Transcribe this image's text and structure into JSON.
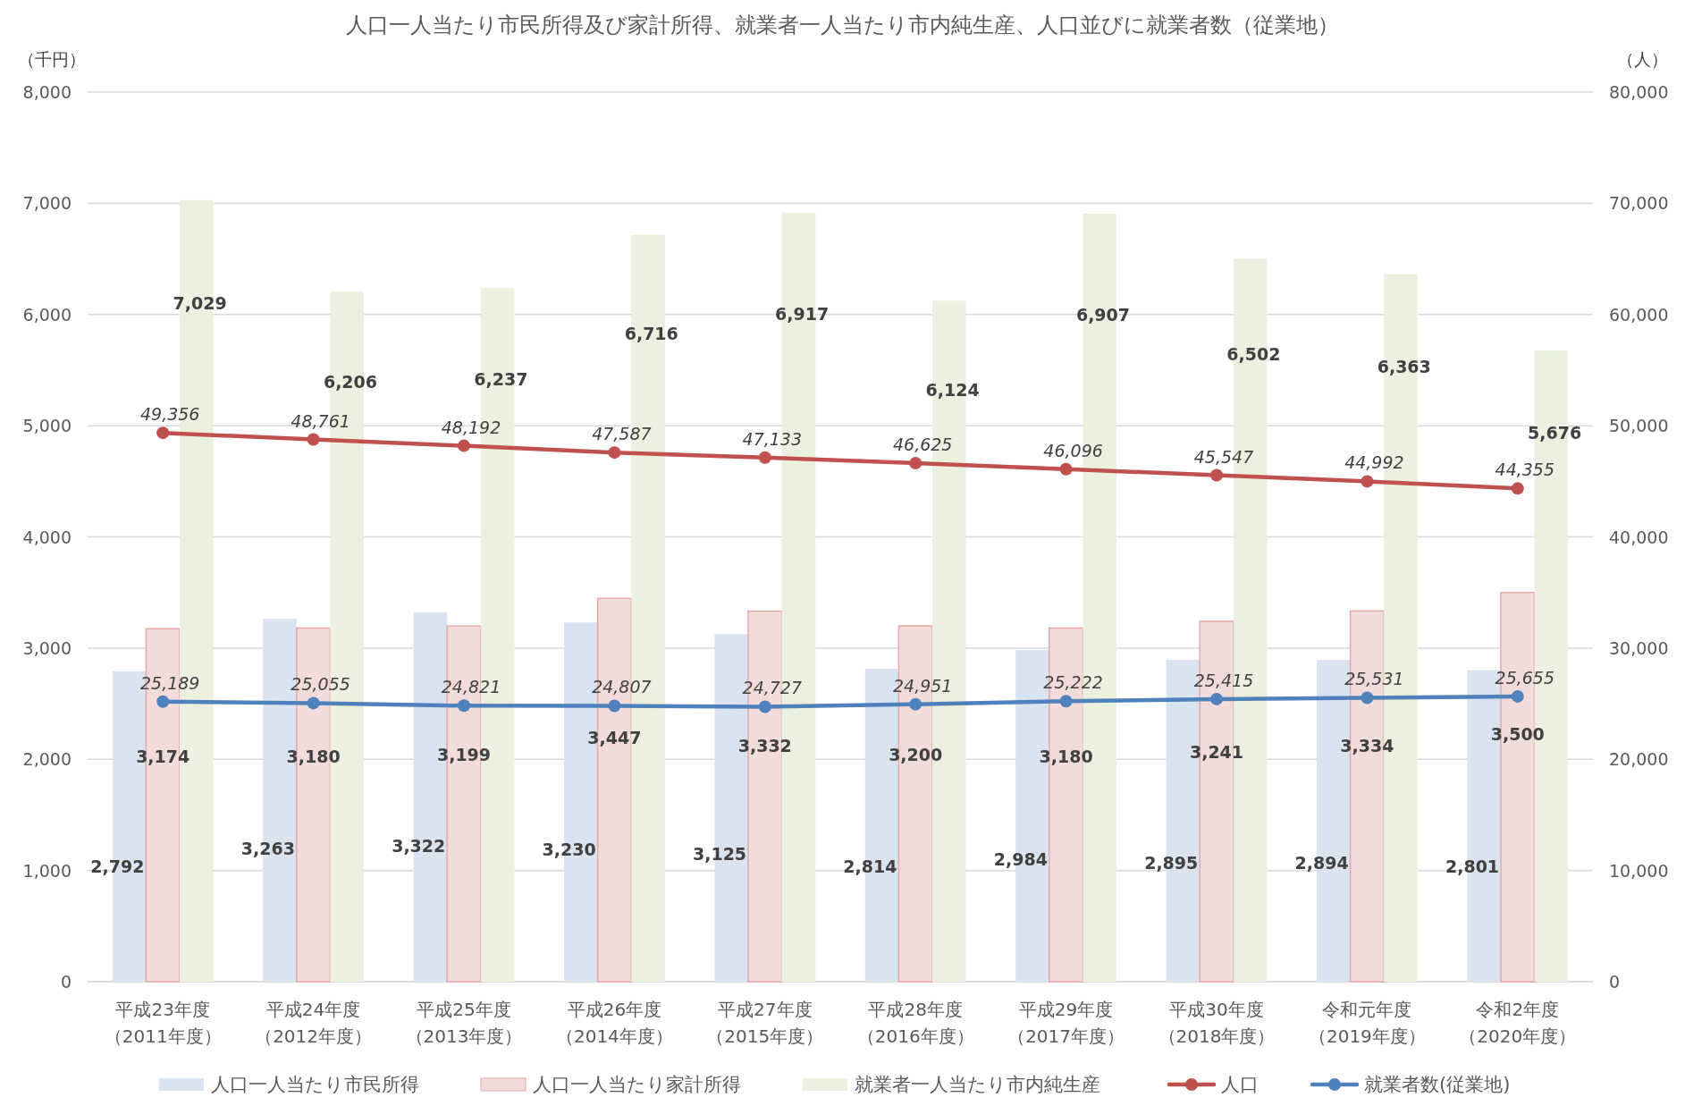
{
  "chart_data": {
    "type": "bar",
    "title": "人口一人当たり市民所得及び家計所得、就業者一人当たり市内純生産、人口並びに就業者数（従業地）",
    "ylabel": "（千円）",
    "y2label": "（人）",
    "categories": [
      "平成23年度（2011年度）",
      "平成24年度（2012年度）",
      "平成25年度（2013年度）",
      "平成26年度（2014年度）",
      "平成27年度（2015年度）",
      "平成28年度（2016年度）",
      "平成29年度（2017年度）",
      "平成30年度（2018年度）",
      "令和元年度（2019年度）",
      "令和2年度（2020年度）"
    ],
    "series": [
      {
        "name": "人口一人当たり市民所得",
        "color": "#dae3f0",
        "values": [
          2792,
          3263,
          3322,
          3230,
          3125,
          2814,
          2984,
          2895,
          2894,
          2801
        ],
        "value_labels": [
          "2,792",
          "3,263",
          "3,322",
          "3,230",
          "3,125",
          "2,814",
          "2,984",
          "2,895",
          "2,894",
          "2,801"
        ]
      },
      {
        "name": "人口一人当たり家計所得",
        "color": "#f2dbdb",
        "values": [
          3174,
          3180,
          3199,
          3447,
          3332,
          3200,
          3180,
          3241,
          3334,
          3500
        ],
        "value_labels": [
          "3,174",
          "3,180",
          "3,199",
          "3,447",
          "3,332",
          "3,200",
          "3,180",
          "3,241",
          "3,334",
          "3,500"
        ]
      },
      {
        "name": "就業者一人当たり市内純生産",
        "color": "#ebf1de",
        "values": [
          7029,
          6206,
          6237,
          6716,
          6917,
          6124,
          6907,
          6502,
          6363,
          5676
        ],
        "value_labels": [
          "7,029",
          "6,206",
          "6,237",
          "6,716",
          "6,917",
          "6,124",
          "6,907",
          "6,502",
          "6,363",
          "5,676"
        ]
      },
      {
        "name": "人口",
        "type": "line",
        "axis": "y2",
        "color": "#c0504d",
        "values": [
          49356,
          48761,
          48192,
          47587,
          47133,
          46625,
          46096,
          45547,
          44992,
          44355
        ],
        "value_labels": [
          "49,356",
          "48,761",
          "48,192",
          "47,587",
          "47,133",
          "46,625",
          "46,096",
          "45,547",
          "44,992",
          "44,355"
        ]
      },
      {
        "name": "就業者数(従業地)",
        "type": "line",
        "axis": "y2",
        "color": "#4f81bd",
        "values": [
          25189,
          25055,
          24821,
          24807,
          24727,
          24951,
          25222,
          25415,
          25531,
          25655
        ],
        "value_labels": [
          "25,189",
          "25,055",
          "24,821",
          "24,807",
          "24,727",
          "24,951",
          "25,222",
          "25,415",
          "25,531",
          "25,655"
        ]
      }
    ],
    "ylim": [
      0,
      8000
    ],
    "yticks": [
      {
        "value": 0,
        "label": "0"
      },
      {
        "value": 1000,
        "label": "1,000"
      },
      {
        "value": 2000,
        "label": "2,000"
      },
      {
        "value": 3000,
        "label": "3,000"
      },
      {
        "value": 4000,
        "label": "4,000"
      },
      {
        "value": 5000,
        "label": "5,000"
      },
      {
        "value": 6000,
        "label": "6,000"
      },
      {
        "value": 7000,
        "label": "7,000"
      },
      {
        "value": 8000,
        "label": "8,000"
      }
    ],
    "y2lim": [
      0,
      80000
    ],
    "y2ticks": [
      {
        "value": 0,
        "label": "0"
      },
      {
        "value": 10000,
        "label": "10,000"
      },
      {
        "value": 20000,
        "label": "20,000"
      },
      {
        "value": 30000,
        "label": "30,000"
      },
      {
        "value": 40000,
        "label": "40,000"
      },
      {
        "value": 50000,
        "label": "50,000"
      },
      {
        "value": 60000,
        "label": "60,000"
      },
      {
        "value": 70000,
        "label": "70,000"
      },
      {
        "value": 80000,
        "label": "80,000"
      }
    ],
    "grid": "y",
    "legend": "bottom",
    "marker": "circle"
  }
}
